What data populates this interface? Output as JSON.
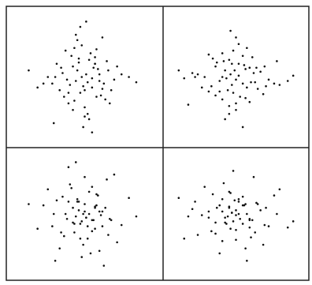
{
  "chart_data": [
    {
      "type": "scatter",
      "color": "#111111",
      "xlim": [
        0,
        100
      ],
      "ylim": [
        0,
        100
      ],
      "x": [
        48,
        52,
        45,
        55,
        60,
        38,
        42,
        50,
        57,
        63,
        35,
        47,
        53,
        44,
        58,
        66,
        30,
        41,
        49,
        56,
        62,
        39,
        51,
        46,
        54,
        70,
        28,
        43,
        59,
        37,
        50,
        65,
        33,
        48,
        55,
        61,
        40,
        52,
        45,
        72,
        25,
        57,
        36,
        68,
        44,
        53,
        31,
        60,
        47,
        75,
        22,
        42,
        58,
        49,
        64,
        34,
        51,
        80,
        18,
        46,
        55,
        39,
        62,
        12,
        85,
        50,
        43,
        57,
        67,
        29
      ],
      "y": [
        50,
        46,
        55,
        42,
        52,
        48,
        58,
        40,
        60,
        45,
        53,
        38,
        63,
        47,
        35,
        55,
        50,
        66,
        43,
        57,
        41,
        30,
        52,
        61,
        68,
        48,
        45,
        32,
        56,
        70,
        27,
        62,
        40,
        74,
        49,
        36,
        44,
        22,
        78,
        58,
        50,
        65,
        35,
        40,
        82,
        18,
        60,
        47,
        88,
        52,
        45,
        25,
        71,
        12,
        33,
        57,
        92,
        50,
        42,
        64,
        8,
        38,
        80,
        55,
        46,
        20,
        72,
        60,
        30,
        15
      ]
    },
    {
      "type": "scatter",
      "color": "#111111",
      "xlim": [
        0,
        100
      ],
      "ylim": [
        0,
        100
      ],
      "x": [
        50,
        46,
        55,
        42,
        52,
        48,
        58,
        40,
        60,
        45,
        53,
        38,
        63,
        47,
        35,
        55,
        50,
        66,
        43,
        57,
        41,
        30,
        52,
        61,
        68,
        48,
        45,
        32,
        56,
        70,
        27,
        62,
        40,
        74,
        49,
        36,
        44,
        22,
        78,
        58,
        50,
        65,
        35,
        40,
        82,
        18,
        60,
        47,
        88,
        52,
        45,
        25,
        71,
        12,
        33,
        57,
        92,
        50,
        42,
        64,
        8,
        38,
        80,
        55,
        46,
        20,
        72,
        60,
        30,
        15
      ],
      "y": [
        48,
        52,
        45,
        55,
        60,
        38,
        42,
        50,
        57,
        63,
        35,
        47,
        53,
        44,
        58,
        66,
        30,
        41,
        49,
        56,
        62,
        39,
        51,
        46,
        54,
        70,
        28,
        43,
        59,
        37,
        50,
        65,
        33,
        48,
        55,
        61,
        40,
        52,
        45,
        72,
        25,
        57,
        36,
        68,
        44,
        53,
        31,
        60,
        47,
        75,
        22,
        42,
        58,
        49,
        64,
        34,
        51,
        80,
        18,
        46,
        55,
        39,
        62,
        12,
        85,
        50,
        43,
        57,
        67,
        29
      ]
    },
    {
      "type": "scatter",
      "color": "#111111",
      "xlim": [
        0,
        100
      ],
      "ylim": [
        0,
        100
      ],
      "x": [
        29,
        67,
        57,
        43,
        50,
        85,
        12,
        62,
        39,
        55,
        46,
        18,
        80,
        51,
        34,
        64,
        49,
        58,
        42,
        22,
        75,
        47,
        60,
        31,
        53,
        44,
        68,
        36,
        57,
        25,
        72,
        45,
        52,
        40,
        61,
        55,
        48,
        33,
        65,
        50,
        37,
        59,
        43,
        28,
        70,
        54,
        46,
        51,
        39,
        62,
        56,
        49,
        41,
        30,
        66,
        58,
        44,
        53,
        47,
        35,
        63,
        57,
        50,
        42,
        38,
        60,
        55,
        45,
        52,
        48
      ],
      "y": [
        50,
        46,
        55,
        42,
        52,
        48,
        58,
        40,
        60,
        45,
        53,
        38,
        63,
        47,
        35,
        55,
        50,
        66,
        43,
        57,
        41,
        30,
        52,
        61,
        68,
        48,
        45,
        32,
        56,
        70,
        27,
        62,
        40,
        74,
        49,
        36,
        44,
        22,
        78,
        58,
        50,
        65,
        35,
        40,
        82,
        18,
        60,
        47,
        88,
        52,
        45,
        25,
        71,
        12,
        33,
        57,
        92,
        50,
        42,
        64,
        8,
        38,
        80,
        55,
        46,
        20,
        72,
        60,
        30,
        15
      ]
    },
    {
      "type": "scatter",
      "color": "#111111",
      "xlim": [
        0,
        100
      ],
      "ylim": [
        0,
        100
      ],
      "x": [
        15,
        30,
        60,
        72,
        20,
        46,
        55,
        80,
        38,
        8,
        64,
        42,
        50,
        92,
        57,
        33,
        12,
        71,
        25,
        45,
        52,
        88,
        47,
        60,
        18,
        82,
        40,
        35,
        65,
        50,
        58,
        78,
        22,
        44,
        36,
        49,
        74,
        40,
        62,
        27,
        70,
        56,
        32,
        45,
        48,
        68,
        61,
        52,
        30,
        41,
        57,
        43,
        66,
        50,
        55,
        35,
        47,
        63,
        38,
        53,
        45,
        60,
        40,
        58,
        48,
        52,
        42,
        55,
        46,
        50
      ],
      "y": [
        48,
        52,
        45,
        55,
        60,
        38,
        42,
        50,
        57,
        63,
        35,
        47,
        53,
        44,
        58,
        66,
        30,
        41,
        49,
        56,
        62,
        39,
        51,
        46,
        54,
        70,
        28,
        43,
        59,
        37,
        50,
        65,
        33,
        48,
        55,
        61,
        40,
        52,
        45,
        72,
        25,
        57,
        36,
        68,
        44,
        53,
        31,
        60,
        47,
        75,
        22,
        42,
        58,
        49,
        64,
        34,
        51,
        80,
        18,
        46,
        55,
        39,
        62,
        12,
        85,
        50,
        43,
        57,
        67,
        29
      ]
    }
  ]
}
